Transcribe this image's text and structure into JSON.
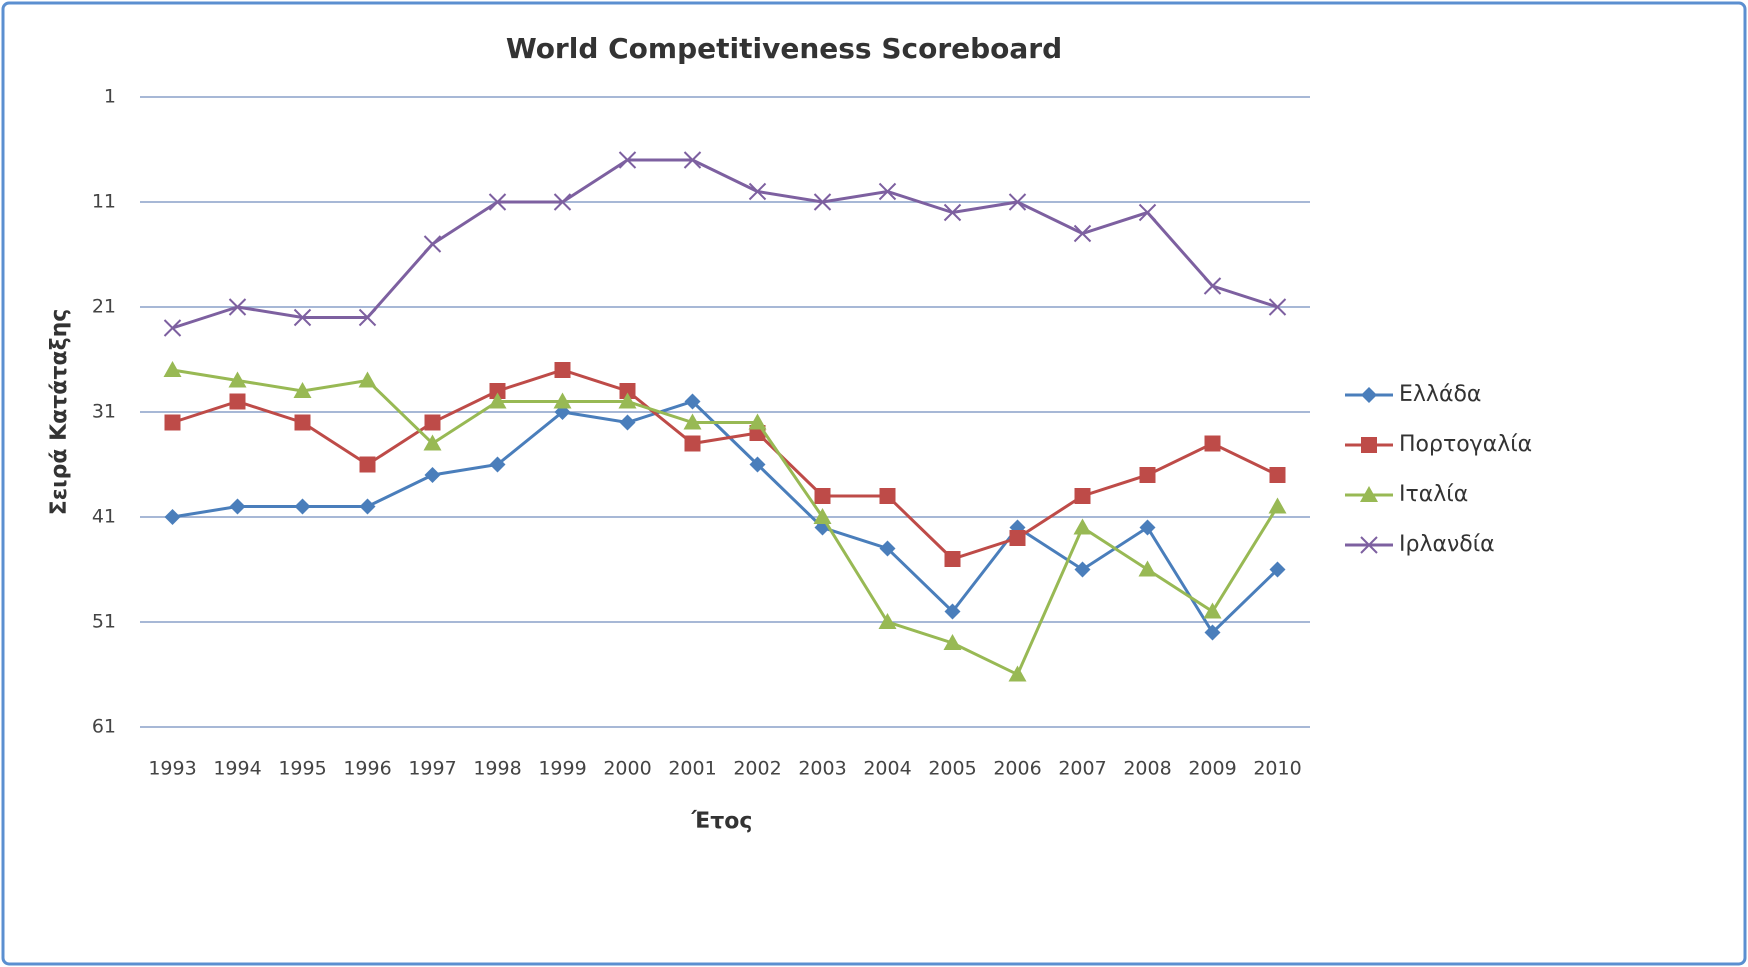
{
  "chart_data": {
    "type": "line",
    "title": "World Competitiveness Scoreboard",
    "y_label": "Σειρά Κατάταξης",
    "x_label": "Έτος",
    "categories": [
      "1993",
      "1994",
      "1995",
      "1996",
      "1997",
      "1998",
      "1999",
      "2000",
      "2001",
      "2002",
      "2003",
      "2004",
      "2005",
      "2006",
      "2007",
      "2008",
      "2009",
      "2010"
    ],
    "ylim": [
      1,
      61
    ],
    "y_reversed": true,
    "yticks": [
      1,
      11,
      21,
      31,
      41,
      51,
      61
    ],
    "grid": true,
    "legend": "right",
    "series": [
      {
        "name": "Ελλάδα",
        "color": "#4a7ebb",
        "marker": "diamond",
        "values": [
          41,
          40,
          40,
          40,
          37,
          36,
          31,
          32,
          30,
          36,
          42,
          44,
          50,
          42,
          46,
          42,
          52,
          46
        ]
      },
      {
        "name": "Πορτογαλία",
        "color": "#be4b48",
        "marker": "square",
        "values": [
          32,
          30,
          32,
          36,
          32,
          29,
          27,
          29,
          34,
          33,
          39,
          39,
          45,
          43,
          39,
          37,
          34,
          37
        ]
      },
      {
        "name": "Ιταλία",
        "color": "#98b954",
        "marker": "triangle",
        "values": [
          27,
          28,
          29,
          28,
          34,
          30,
          30,
          30,
          32,
          32,
          41,
          51,
          53,
          56,
          42,
          46,
          50,
          40
        ]
      },
      {
        "name": "Ιρλανδία",
        "color": "#7d60a0",
        "marker": "x",
        "values": [
          23,
          21,
          22,
          22,
          15,
          11,
          11,
          7,
          7,
          10,
          11,
          10,
          12,
          11,
          14,
          12,
          19,
          21
        ]
      }
    ]
  }
}
